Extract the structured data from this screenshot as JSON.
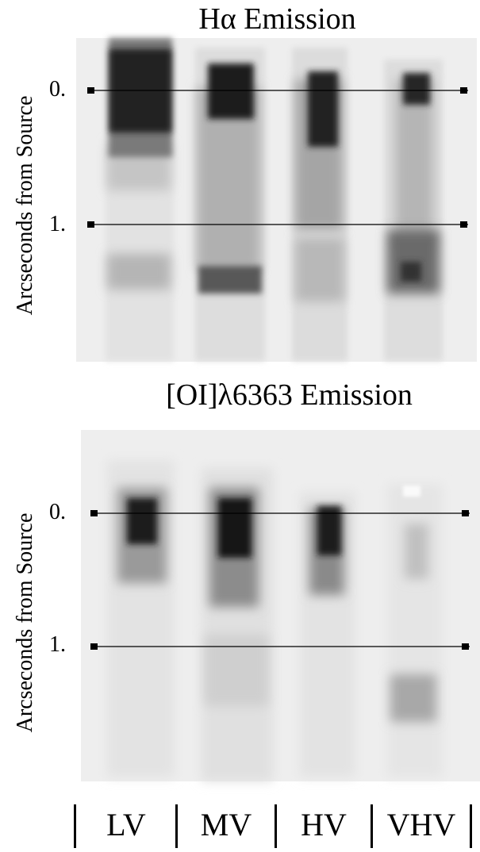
{
  "panels": [
    {
      "title": "Hα Emission",
      "ylabel": "Arcseconds from Source",
      "tick_top": "0.",
      "tick_bottom": "1."
    },
    {
      "title": "[OI]λ6363 Emission",
      "ylabel": "Arcseconds from Source",
      "tick_top": "0.",
      "tick_bottom": "1."
    }
  ],
  "velocity_bins": [
    "LV",
    "MV",
    "HV",
    "VHV"
  ],
  "colors": {
    "background": "#ffffff",
    "image_bg": "#eeeeee",
    "line": "#000000"
  }
}
